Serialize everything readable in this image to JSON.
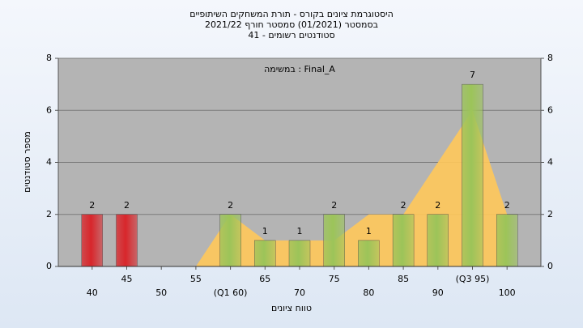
{
  "chart_data": {
    "type": "bar",
    "title": [
      "היסטוגרמת ציונים בקורס - תורת המשחקים השיתופיים",
      "בסמסטר (01/2021) סמסטר חורף 2021/22",
      "סטודנטים רשומים - 41"
    ],
    "annotation": "במשימה : Final_A",
    "xlabel": "טווח ציונים",
    "ylabel": "מספר סטודנטים",
    "categories": [
      "40",
      "45",
      "50",
      "55",
      "(Q1 60)",
      "65",
      "70",
      "75",
      "80",
      "85",
      "90",
      "(Q3 95)",
      "100"
    ],
    "values": [
      2,
      2,
      0,
      0,
      2,
      1,
      1,
      2,
      1,
      2,
      2,
      7,
      2
    ],
    "colors": [
      "#d8262b",
      "#d8262b",
      "#9cc459",
      "#9cc459",
      "#9cc459",
      "#9cc459",
      "#9cc459",
      "#9cc459",
      "#9cc459",
      "#9cc459",
      "#9cc459",
      "#9cc459",
      "#9cc459"
    ],
    "area_values": [
      null,
      null,
      null,
      0,
      2,
      1,
      1,
      1,
      2,
      2,
      4,
      6,
      2
    ],
    "area_color": "#ffc85a",
    "ylim": [
      0,
      8
    ],
    "yticks": [
      0,
      2,
      4,
      6,
      8
    ],
    "y2lim": [
      0,
      8
    ],
    "y2ticks": [
      0,
      2,
      4,
      6,
      8
    ]
  }
}
